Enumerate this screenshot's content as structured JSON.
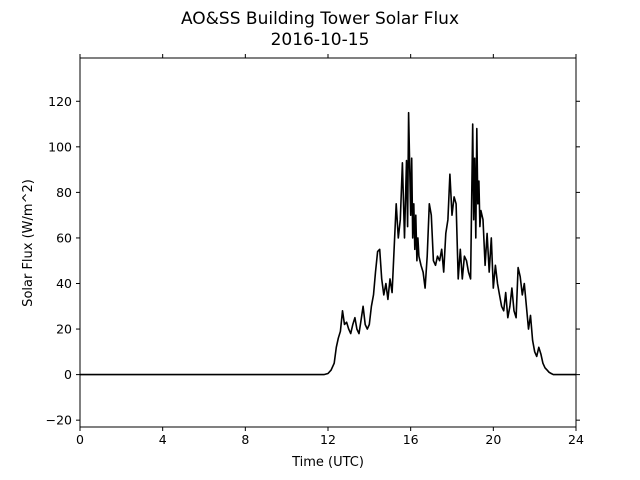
{
  "chart_data": {
    "type": "line",
    "title": "AO&SS Building Tower Solar Flux",
    "subtitle": "2016-10-15",
    "xlabel": "Time (UTC)",
    "ylabel": "Solar Flux (W/m^2)",
    "xlim": [
      0,
      24
    ],
    "ylim": [
      -23,
      139
    ],
    "xticks": [
      0,
      4,
      8,
      12,
      16,
      20,
      24
    ],
    "yticks": [
      -20,
      0,
      20,
      40,
      60,
      80,
      100,
      120
    ],
    "grid": false,
    "legend": "none",
    "colors": {
      "line": "#000000",
      "axes": "#000000",
      "background": "#ffffff"
    },
    "series": [
      {
        "x": [
          0,
          11.8,
          12.0,
          12.15,
          12.3,
          12.4,
          12.5,
          12.6,
          12.7,
          12.8,
          12.9,
          13.0,
          13.1,
          13.2,
          13.3,
          13.4,
          13.5,
          13.6,
          13.7,
          13.8,
          13.9,
          14.0,
          14.1,
          14.2,
          14.3,
          14.4,
          14.5,
          14.6,
          14.7,
          14.8,
          14.9,
          15.0,
          15.1,
          15.2,
          15.3,
          15.4,
          15.5,
          15.6,
          15.7,
          15.8,
          15.85,
          15.9,
          16.0,
          16.05,
          16.1,
          16.15,
          16.2,
          16.25,
          16.3,
          16.35,
          16.4,
          16.5,
          16.6,
          16.7,
          16.8,
          16.9,
          17.0,
          17.1,
          17.2,
          17.3,
          17.4,
          17.5,
          17.6,
          17.7,
          17.8,
          17.9,
          18.0,
          18.1,
          18.2,
          18.3,
          18.4,
          18.5,
          18.6,
          18.7,
          18.8,
          18.9,
          19.0,
          19.05,
          19.1,
          19.15,
          19.2,
          19.25,
          19.3,
          19.35,
          19.4,
          19.5,
          19.6,
          19.7,
          19.8,
          19.9,
          20.0,
          20.1,
          20.2,
          20.3,
          20.4,
          20.5,
          20.6,
          20.7,
          20.8,
          20.9,
          21.0,
          21.1,
          21.2,
          21.3,
          21.4,
          21.5,
          21.6,
          21.7,
          21.8,
          21.9,
          22.0,
          22.1,
          22.2,
          22.3,
          22.4,
          22.5,
          22.6,
          22.7,
          22.8,
          22.9,
          23.0,
          23.2,
          23.4,
          24.0
        ],
        "y": [
          0,
          0,
          0.5,
          2,
          5,
          12,
          16,
          19,
          28,
          22,
          23,
          20,
          18,
          22,
          25,
          20,
          18,
          24,
          30,
          22,
          20,
          22,
          30,
          35,
          45,
          54,
          55,
          42,
          35,
          40,
          33,
          42,
          36,
          55,
          75,
          60,
          68,
          93,
          60,
          94,
          65,
          115,
          70,
          95,
          60,
          75,
          55,
          70,
          50,
          60,
          52,
          48,
          45,
          38,
          52,
          75,
          70,
          50,
          48,
          52,
          50,
          55,
          45,
          62,
          68,
          88,
          70,
          78,
          75,
          42,
          55,
          42,
          52,
          50,
          45,
          42,
          110,
          68,
          95,
          60,
          108,
          75,
          85,
          65,
          72,
          68,
          48,
          62,
          45,
          60,
          38,
          48,
          40,
          35,
          30,
          28,
          36,
          25,
          30,
          38,
          28,
          25,
          47,
          43,
          35,
          40,
          30,
          20,
          26,
          15,
          10,
          8,
          12,
          9,
          5,
          3,
          2,
          1,
          0.5,
          0,
          0,
          0,
          0,
          0
        ]
      }
    ]
  }
}
